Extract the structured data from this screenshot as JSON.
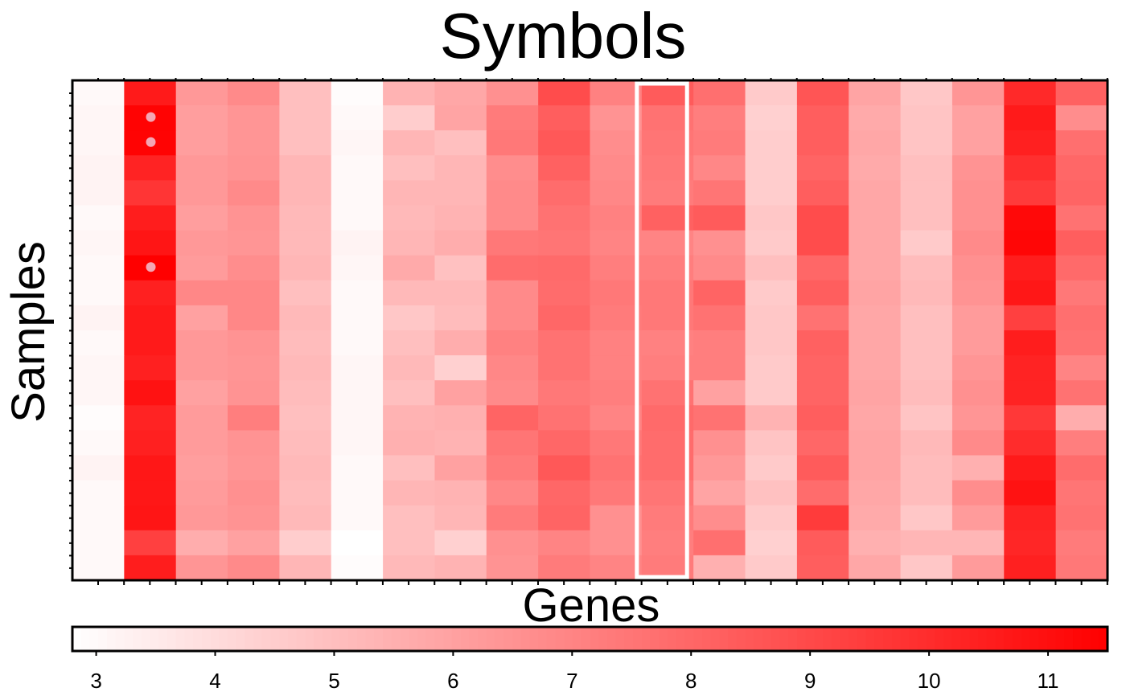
{
  "chart_data": {
    "type": "heatmap",
    "title": "Symbols",
    "xlabel": "Genes",
    "ylabel": "Samples",
    "n_genes": 20,
    "n_samples": 20,
    "color_scale": {
      "min": 2.8,
      "max": 11.5,
      "low_color": "#ffffff",
      "high_color": "#ff0000",
      "ticks": [
        "3",
        "4",
        "5",
        "6",
        "7",
        "8",
        "9",
        "10",
        "11"
      ]
    },
    "highlighted_gene": 11,
    "markers": [
      {
        "gene": 1,
        "sample": 1
      },
      {
        "gene": 1,
        "sample": 2
      },
      {
        "gene": 1,
        "sample": 7
      }
    ],
    "marker_color": "#f4a6b4",
    "highlight_color": "#ffffff",
    "values": [
      [
        3.0,
        10.6,
        6.3,
        6.8,
        5.0,
        2.9,
        5.4,
        5.8,
        6.6,
        8.9,
        7.1,
        8.4,
        7.7,
        4.6,
        8.6,
        5.9,
        4.7,
        6.4,
        10.1,
        8.2
      ],
      [
        3.1,
        11.4,
        6.1,
        6.4,
        5.0,
        3.0,
        4.5,
        5.9,
        7.3,
        8.3,
        6.5,
        7.6,
        7.2,
        4.4,
        8.3,
        5.7,
        4.8,
        6.0,
        10.6,
        6.7
      ],
      [
        3.1,
        11.4,
        6.1,
        6.4,
        5.0,
        3.1,
        5.3,
        5.0,
        7.4,
        8.5,
        6.7,
        7.5,
        7.3,
        4.5,
        8.3,
        5.8,
        4.8,
        6.0,
        10.4,
        7.7
      ],
      [
        3.2,
        10.3,
        6.3,
        6.5,
        5.3,
        3.0,
        5.0,
        5.3,
        6.7,
        8.2,
        6.8,
        7.4,
        6.9,
        4.5,
        8.1,
        5.7,
        5.0,
        6.5,
        9.9,
        8.0
      ],
      [
        3.2,
        9.7,
        6.3,
        6.8,
        5.3,
        3.0,
        5.3,
        5.3,
        6.8,
        7.8,
        6.9,
        7.3,
        7.5,
        4.5,
        8.3,
        5.8,
        5.0,
        6.6,
        9.5,
        8.1
      ],
      [
        3.0,
        10.5,
        6.1,
        6.5,
        5.2,
        3.0,
        5.2,
        5.4,
        6.8,
        7.6,
        7.1,
        8.2,
        8.4,
        4.7,
        8.9,
        5.8,
        5.0,
        6.6,
        11.2,
        7.6
      ],
      [
        3.1,
        10.8,
        6.3,
        6.4,
        5.2,
        3.2,
        5.3,
        5.6,
        7.4,
        7.5,
        7.0,
        7.0,
        6.6,
        4.6,
        8.9,
        5.8,
        4.6,
        6.8,
        11.3,
        8.3
      ],
      [
        3.0,
        11.5,
        6.2,
        6.7,
        5.3,
        3.1,
        5.7,
        4.9,
        7.8,
        7.9,
        7.2,
        7.2,
        6.8,
        5.0,
        8.0,
        5.8,
        5.1,
        6.6,
        10.5,
        7.9
      ],
      [
        3.0,
        10.4,
        6.9,
        6.9,
        5.0,
        3.0,
        5.2,
        5.2,
        6.8,
        7.8,
        7.4,
        7.4,
        8.1,
        4.6,
        8.3,
        5.9,
        5.2,
        6.5,
        10.7,
        7.4
      ],
      [
        3.2,
        10.6,
        6.0,
        6.9,
        5.2,
        3.0,
        4.7,
        5.1,
        6.8,
        8.0,
        7.3,
        7.4,
        7.6,
        4.7,
        7.6,
        5.8,
        5.0,
        6.2,
        9.3,
        7.7
      ],
      [
        3.0,
        10.6,
        6.3,
        6.5,
        5.1,
        3.0,
        5.0,
        5.6,
        7.1,
        7.6,
        7.1,
        7.1,
        7.2,
        4.7,
        8.2,
        5.8,
        5.0,
        6.2,
        10.5,
        7.6
      ],
      [
        3.1,
        10.4,
        6.3,
        6.4,
        5.2,
        3.1,
        5.2,
        4.4,
        6.9,
        7.6,
        7.1,
        7.2,
        7.2,
        4.6,
        8.1,
        5.8,
        5.0,
        6.4,
        10.3,
        7.0
      ],
      [
        3.1,
        10.9,
        6.0,
        6.5,
        5.1,
        3.1,
        5.0,
        6.0,
        6.8,
        7.4,
        7.2,
        7.6,
        6.0,
        4.6,
        8.1,
        5.9,
        5.1,
        6.6,
        10.3,
        7.6
      ],
      [
        2.9,
        10.3,
        6.2,
        7.2,
        5.0,
        3.1,
        5.4,
        5.5,
        8.1,
        7.6,
        7.0,
        7.9,
        7.6,
        5.4,
        8.3,
        5.8,
        4.8,
        6.4,
        9.6,
        5.6
      ],
      [
        3.0,
        10.4,
        6.2,
        6.5,
        5.1,
        3.1,
        5.5,
        5.4,
        7.5,
        8.0,
        7.4,
        7.8,
        6.6,
        4.8,
        8.0,
        5.9,
        5.2,
        6.8,
        10.0,
        7.2
      ],
      [
        3.2,
        10.7,
        6.1,
        6.4,
        5.2,
        3.0,
        5.0,
        6.0,
        7.3,
        8.5,
        7.6,
        7.8,
        6.3,
        4.6,
        8.4,
        5.9,
        5.1,
        5.5,
        10.6,
        7.8
      ],
      [
        3.0,
        10.7,
        6.2,
        6.6,
        5.1,
        3.0,
        5.3,
        5.4,
        6.9,
        8.0,
        7.4,
        7.5,
        5.9,
        4.9,
        7.8,
        5.8,
        5.1,
        6.7,
        10.9,
        7.5
      ],
      [
        3.0,
        10.8,
        6.3,
        6.5,
        5.2,
        3.0,
        5.0,
        5.3,
        7.3,
        8.1,
        6.6,
        7.3,
        6.7,
        4.6,
        9.5,
        5.7,
        4.7,
        6.2,
        10.3,
        7.6
      ],
      [
        3.0,
        9.3,
        5.6,
        6.0,
        4.5,
        2.8,
        5.0,
        4.4,
        6.6,
        7.0,
        6.6,
        7.2,
        7.7,
        4.4,
        8.4,
        5.5,
        5.3,
        5.3,
        10.2,
        7.3
      ],
      [
        3.0,
        10.5,
        6.4,
        6.8,
        5.3,
        2.9,
        5.2,
        5.4,
        6.5,
        7.3,
        7.0,
        7.3,
        5.5,
        4.6,
        8.3,
        5.8,
        4.7,
        6.2,
        10.4,
        7.4
      ]
    ]
  }
}
